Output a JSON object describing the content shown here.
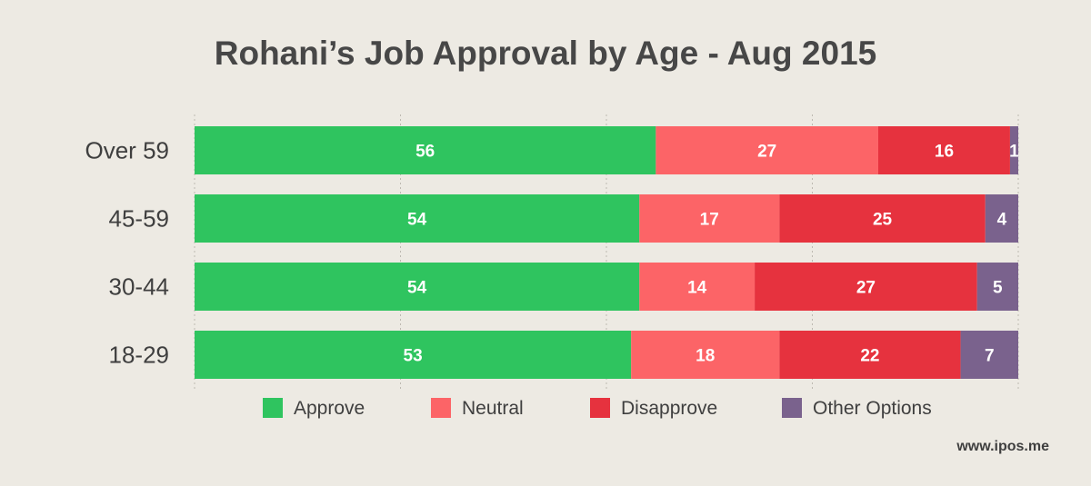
{
  "chart_data": {
    "type": "bar",
    "orientation": "horizontal",
    "stacked": true,
    "title": "Rohani’s Job Approval by Age - Aug 2015",
    "categories": [
      "Over 59",
      "45-59",
      "30-44",
      "18-29"
    ],
    "series": [
      {
        "name": "Approve",
        "color": "#2fc45f",
        "values": [
          56,
          54,
          54,
          53
        ]
      },
      {
        "name": "Neutral",
        "color": "#fc6467",
        "values": [
          27,
          17,
          14,
          18
        ]
      },
      {
        "name": "Disapprove",
        "color": "#e6323e",
        "values": [
          16,
          25,
          27,
          22
        ]
      },
      {
        "name": "Other Options",
        "color": "#7a628d",
        "values": [
          1,
          4,
          5,
          7
        ]
      }
    ],
    "xlim": [
      0,
      100
    ],
    "grid": true,
    "legend_position": "bottom"
  },
  "watermark": "www.ipos.me"
}
